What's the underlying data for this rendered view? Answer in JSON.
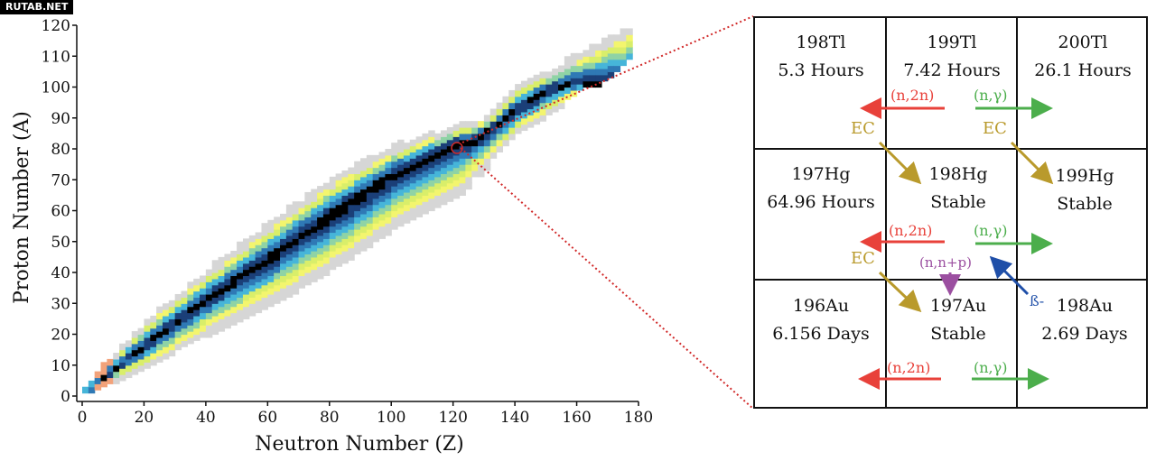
{
  "watermark": "RUTAB.NET",
  "chart_data": {
    "type": "heatmap",
    "xlabel": "Neutron Number (Z)",
    "ylabel": "Proton Number (A)",
    "xlim": [
      0,
      180
    ],
    "ylim": [
      0,
      120
    ],
    "x_ticks": [
      0,
      20,
      40,
      60,
      80,
      100,
      120,
      140,
      160,
      180
    ],
    "y_ticks": [
      0,
      10,
      20,
      30,
      40,
      50,
      60,
      70,
      80,
      90,
      100,
      110,
      120
    ],
    "grid": false,
    "stability_line_points": [
      [
        0,
        0
      ],
      [
        10,
        8
      ],
      [
        20,
        16
      ],
      [
        40,
        31
      ],
      [
        60,
        44
      ],
      [
        80,
        58
      ],
      [
        100,
        71
      ],
      [
        120,
        81
      ],
      [
        126,
        82
      ],
      [
        140,
        92
      ],
      [
        150,
        98
      ],
      [
        156,
        100
      ]
    ],
    "band_upper": [
      [
        0,
        2
      ],
      [
        10,
        12
      ],
      [
        20,
        22
      ],
      [
        40,
        38
      ],
      [
        60,
        53
      ],
      [
        80,
        67
      ],
      [
        100,
        78
      ],
      [
        120,
        85
      ],
      [
        130,
        88
      ],
      [
        140,
        98
      ],
      [
        160,
        108
      ],
      [
        176,
        116
      ]
    ],
    "band_lower": [
      [
        2,
        0
      ],
      [
        10,
        5
      ],
      [
        20,
        10
      ],
      [
        40,
        22
      ],
      [
        60,
        32
      ],
      [
        80,
        44
      ],
      [
        100,
        57
      ],
      [
        120,
        67
      ],
      [
        130,
        76
      ],
      [
        140,
        86
      ],
      [
        160,
        98
      ],
      [
        176,
        112
      ]
    ],
    "colors": [
      "#000000",
      "#1b3f78",
      "#2f79b5",
      "#46b5d9",
      "#8fd3a5",
      "#d9ee6a",
      "#f3f56e",
      "#d6d6d6",
      "#f2a27a"
    ]
  },
  "grid_panel": {
    "cells": [
      [
        {
          "name": "198Tl",
          "value": "5.3 Hours"
        },
        {
          "name": "199Tl",
          "value": "7.42 Hours"
        },
        {
          "name": "200Tl",
          "value": "26.1 Hours"
        }
      ],
      [
        {
          "name": "197Hg",
          "value": "64.96 Hours"
        },
        {
          "name": "198Hg",
          "value": "Stable"
        },
        {
          "name": "199Hg",
          "value": "Stable"
        }
      ],
      [
        {
          "name": "196Au",
          "value": "6.156 Days"
        },
        {
          "name": "197Au",
          "value": "Stable"
        },
        {
          "name": "198Au",
          "value": "2.69 Days"
        }
      ]
    ],
    "reactions": {
      "n2n": "(n,2n)",
      "ngamma": "(n,γ)",
      "ec": "EC",
      "nnp": "(n,n+p)",
      "beta": "ß-"
    },
    "colors": {
      "n2n": "#e8413a",
      "ngamma": "#4cae4c",
      "ec": "#b99a2c",
      "nnp": "#9b4fa0",
      "beta": "#1f4fa8",
      "zoom_line": "#d12a2a"
    }
  }
}
